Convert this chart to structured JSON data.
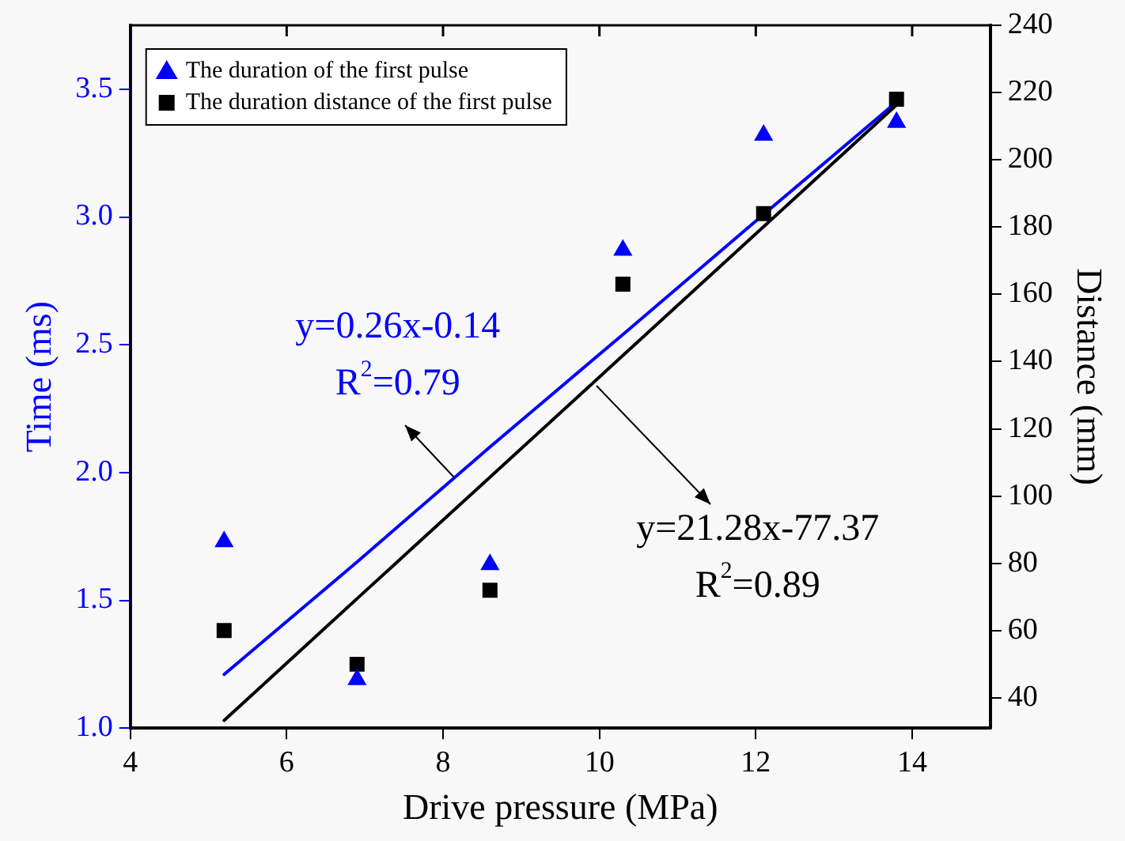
{
  "chart_data": {
    "type": "scatter",
    "xlabel": "Drive pressure (MPa)",
    "ylabel": "Time (ms)",
    "y2label": "Distance (mm)",
    "x": [
      5.2,
      6.9,
      8.6,
      10.3,
      12.1,
      13.8
    ],
    "series": [
      {
        "name": "The duration of the first pulse",
        "color": "#0000ff",
        "marker": "triangle",
        "values": [
          1.73,
          1.19,
          1.64,
          2.87,
          3.32,
          3.37
        ]
      },
      {
        "name": "The duration distance of the first pulse",
        "color": "#000000",
        "marker": "square",
        "axis": "y2",
        "values": [
          60,
          50,
          72,
          163,
          184,
          218
        ]
      },
      {
        "type": "line",
        "color": "#0000ff",
        "marker": "none",
        "values": [
          1.21,
          1.65,
          2.1,
          2.54,
          3.01,
          3.45
        ]
      },
      {
        "type": "line",
        "color": "#000000",
        "marker": "none",
        "axis": "y2",
        "values": [
          33.3,
          69.5,
          105.6,
          141.8,
          180.1,
          216.3
        ]
      }
    ],
    "xlim": [
      4,
      15
    ],
    "xticks": [
      4,
      6,
      8,
      10,
      12,
      14
    ],
    "ylim": [
      1,
      3.75
    ],
    "yticks": [
      {
        "value": 1,
        "label": "1.0"
      },
      {
        "value": 1.5,
        "label": "1.5"
      },
      {
        "value": 2,
        "label": "2.0"
      },
      {
        "value": 2.5,
        "label": "2.5"
      },
      {
        "value": 3,
        "label": "3.0"
      },
      {
        "value": 3.5,
        "label": "3.5"
      }
    ],
    "y2lim": [
      31,
      240
    ],
    "y2ticks": [
      40,
      60,
      80,
      100,
      120,
      140,
      160,
      180,
      200,
      220,
      240
    ],
    "legend": "top left",
    "annotations": [
      {
        "text": "y=0.26x-0.14\nR$^{2}$=0.79",
        "x": 8.15,
        "y": 1.98
      },
      {
        "text": "y=21.28x-77.37\nR$^{2}$=0.89",
        "x": 9.96,
        "y": 2.34
      }
    ]
  }
}
